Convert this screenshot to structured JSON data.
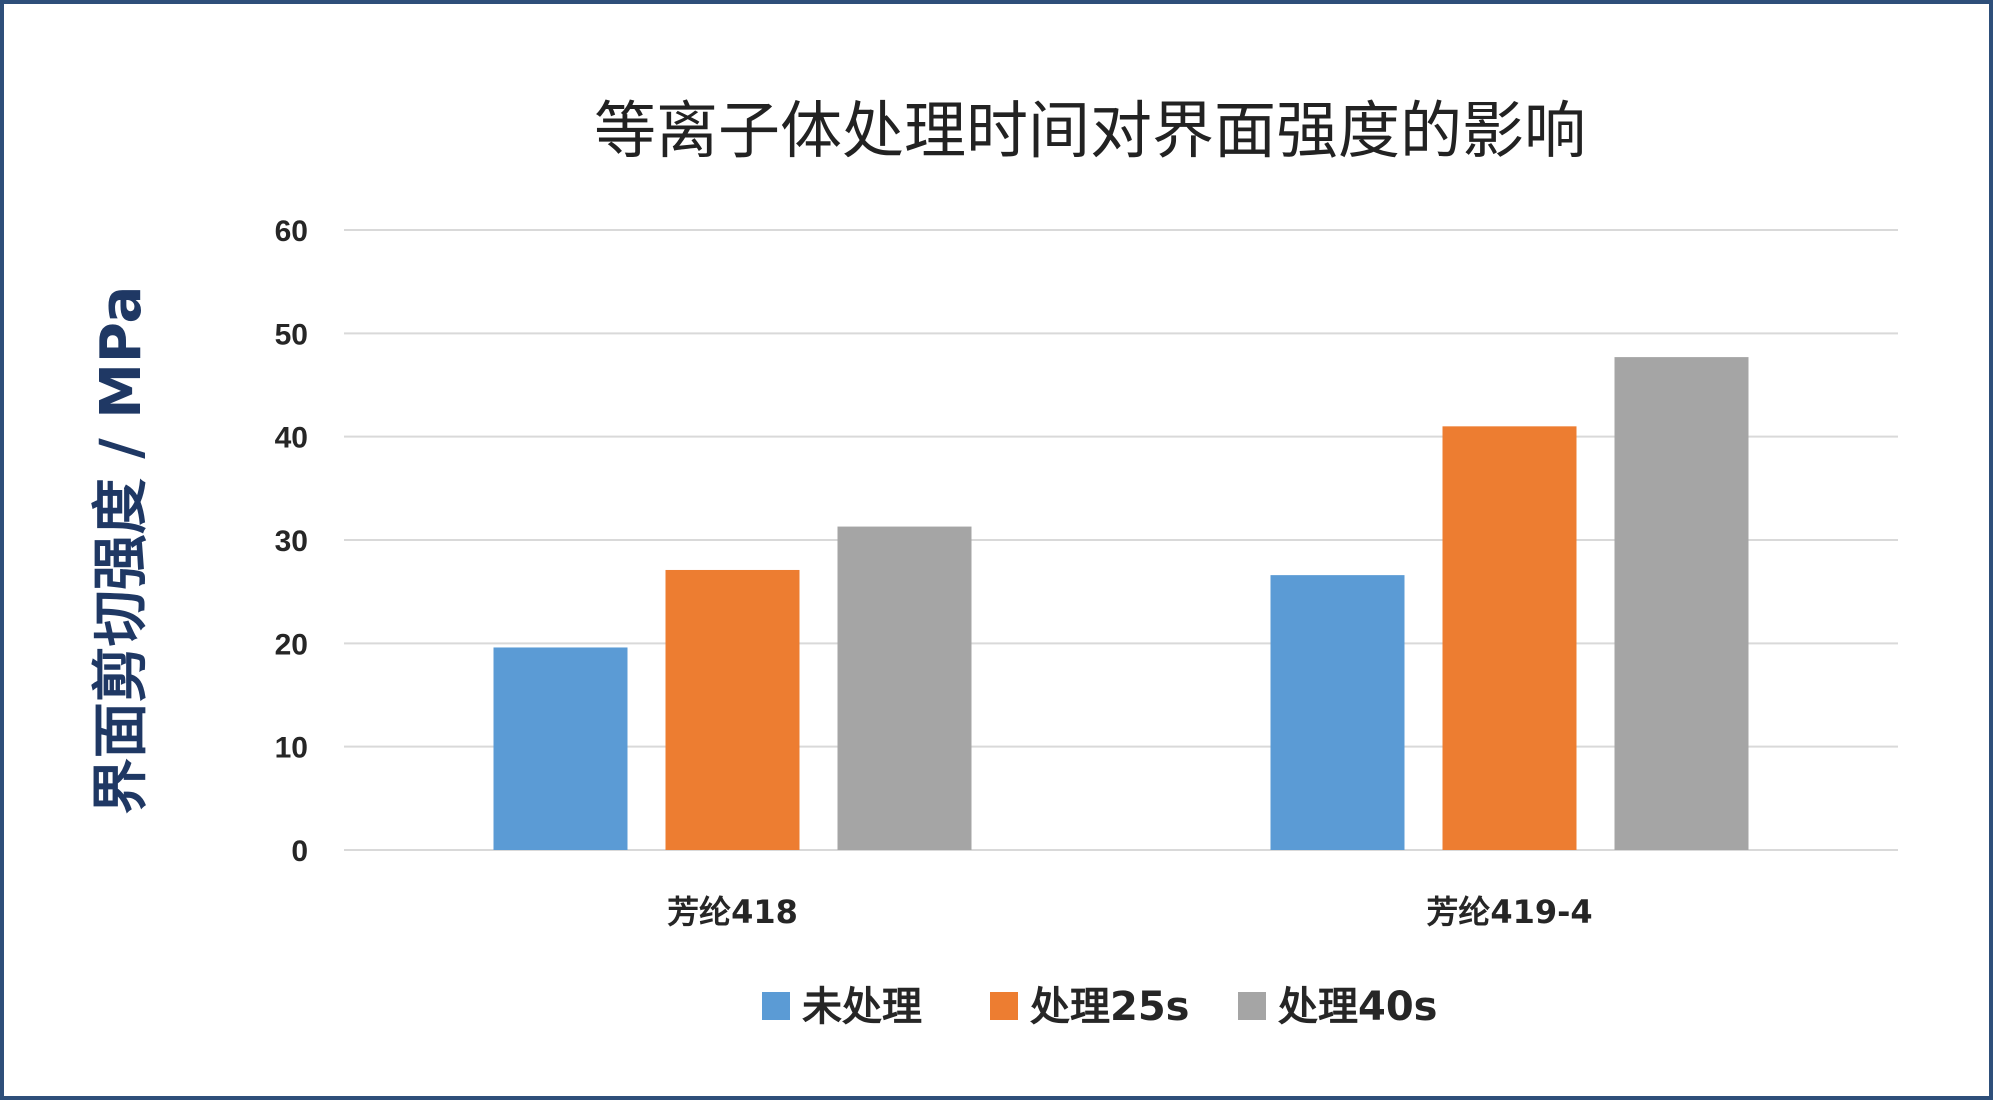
{
  "chart_data": {
    "type": "bar",
    "title": "等离子体处理时间对界面强度的影响",
    "ylabel": "界面剪切强度 / MPa",
    "xlabel": "",
    "categories": [
      "芳纶418",
      "芳纶419-4"
    ],
    "series": [
      {
        "name": "未处理",
        "color": "#5b9bd5",
        "values": [
          19.6,
          26.6
        ]
      },
      {
        "name": "处理25s",
        "color": "#ed7d31",
        "values": [
          27.1,
          41.0
        ]
      },
      {
        "name": "处理40s",
        "color": "#a5a5a5",
        "values": [
          31.3,
          47.7
        ]
      }
    ],
    "ylim": [
      0,
      60
    ],
    "yticks": [
      "0",
      "10",
      "20",
      "30",
      "40",
      "50",
      "60"
    ],
    "grid": true,
    "legend_position": "bottom"
  }
}
